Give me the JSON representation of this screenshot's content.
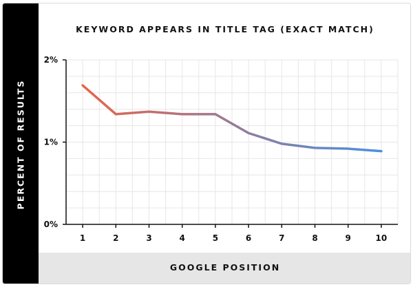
{
  "chart_data": {
    "type": "line",
    "title": "KEYWORD APPEARS IN TITLE TAG (EXACT MATCH)",
    "xlabel": "GOOGLE POSITION",
    "ylabel": "PERCENT OF RESULTS",
    "x": [
      1,
      2,
      3,
      4,
      5,
      6,
      7,
      8,
      9,
      10
    ],
    "x_tick_labels": [
      "1",
      "2",
      "3",
      "4",
      "5",
      "6",
      "7",
      "8",
      "9",
      "10"
    ],
    "y_ticks": [
      0,
      1,
      2
    ],
    "y_tick_labels": [
      "0%",
      "1%",
      "2%"
    ],
    "ylim": [
      0,
      2
    ],
    "xlim": [
      0.5,
      10.5
    ],
    "grid": true,
    "series": [
      {
        "values": [
          1.69,
          1.34,
          1.37,
          1.34,
          1.34,
          1.11,
          0.98,
          0.93,
          0.92,
          0.89
        ]
      }
    ],
    "colors": {
      "line_start": "#e8644a",
      "line_end": "#4a90e2",
      "grid": "#e6e6e6",
      "axis": "#111111"
    }
  }
}
